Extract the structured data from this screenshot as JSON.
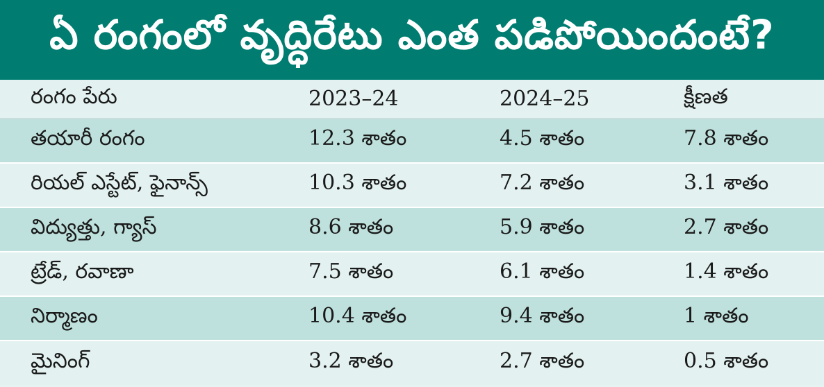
{
  "title": "ఏ రంగంలో వృద్ధిరేటు ఎంత పడిపోయిందంటే?",
  "colors": {
    "title_bg": "#007d70",
    "row_dark": "#bfe1dd",
    "row_light": "#e3f2f1"
  },
  "table": {
    "headers": [
      "రంగం పేరు",
      "2023–24",
      "2024–25",
      "క్షీణత"
    ],
    "rows": [
      [
        "తయారీ రంగం",
        "12.3 శాతం",
        "4.5 శాతం",
        "7.8 శాతం"
      ],
      [
        "రియల్ ఎస్టేట్, ఫైనాన్స్",
        "10.3 శాతం",
        "7.2 శాతం",
        "3.1 శాతం"
      ],
      [
        "విద్యుత్తు, గ్యాస్",
        "8.6 శాతం",
        "5.9 శాతం",
        "2.7 శాతం"
      ],
      [
        "ట్రేడ్, రవాణా",
        "7.5 శాతం",
        "6.1 శాతం",
        "1.4 శాతం"
      ],
      [
        "నిర్మాణం",
        "10.4 శాతం",
        "9.4 శాతం",
        "1 శాతం"
      ],
      [
        "మైనింగ్",
        "3.2 శాతం",
        "2.7 శాతం",
        "0.5 శాతం"
      ]
    ]
  }
}
